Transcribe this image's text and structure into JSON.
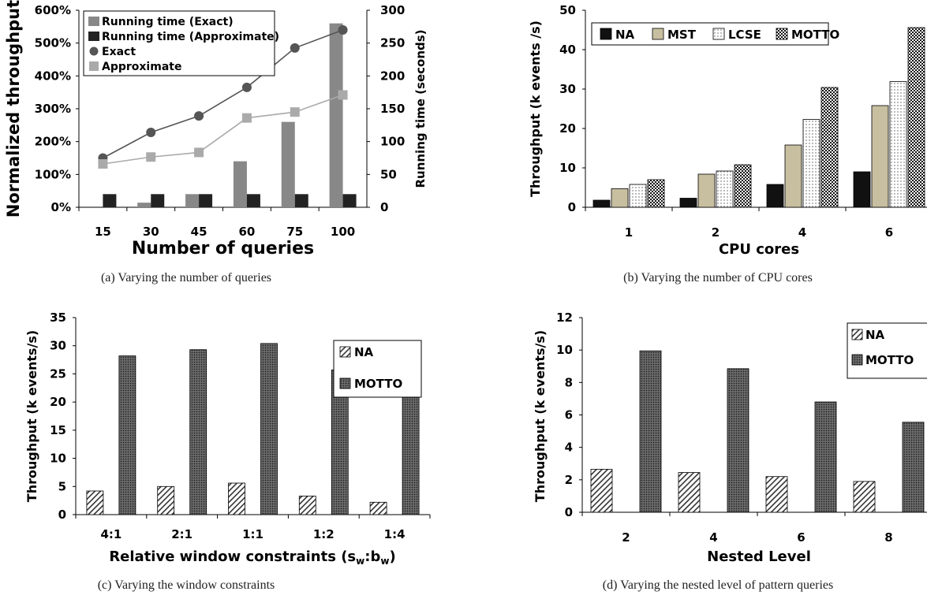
{
  "chart_data": [
    {
      "id": "a",
      "type": "bar+line",
      "caption": "(a) Varying the number of queries",
      "xlabel": "Number of queries",
      "ylabel_left": "Normalized throughput",
      "ylabel_right": "Running time (seconds)",
      "categories": [
        "15",
        "30",
        "45",
        "60",
        "75",
        "100"
      ],
      "ylim_left": [
        0,
        600
      ],
      "ylim_right": [
        0,
        300
      ],
      "yticks_left": [
        "0%",
        "100%",
        "200%",
        "300%",
        "400%",
        "500%",
        "600%"
      ],
      "yticks_right": [
        "0",
        "50",
        "100",
        "150",
        "200",
        "250",
        "300"
      ],
      "bar_series": [
        {
          "name": "Running time (Exact)",
          "color": "#888888",
          "values": [
            0,
            7,
            20,
            70,
            130,
            280
          ]
        },
        {
          "name": "Running time (Approximate)",
          "color": "#222222",
          "values": [
            20,
            20,
            20,
            20,
            20,
            20
          ]
        }
      ],
      "line_series": [
        {
          "name": "Exact",
          "color": "#555555",
          "marker": "circle",
          "values": [
            150,
            228,
            278,
            365,
            485,
            540
          ]
        },
        {
          "name": "Approximate",
          "color": "#aaaaaa",
          "marker": "square",
          "values": [
            132,
            153,
            167,
            272,
            290,
            342
          ]
        }
      ],
      "legend": "top-left"
    },
    {
      "id": "b",
      "type": "bar",
      "caption": "(b) Varying the number of CPU cores",
      "xlabel": "CPU cores",
      "ylabel": "Throughput (k events /s)",
      "categories": [
        "1",
        "2",
        "4",
        "6"
      ],
      "ylim": [
        0,
        50
      ],
      "yticks": [
        "0",
        "10",
        "20",
        "30",
        "40",
        "50"
      ],
      "series": [
        {
          "name": "NA",
          "pattern": "solid",
          "values": [
            1.8,
            2.3,
            5.8,
            9.0
          ]
        },
        {
          "name": "MST",
          "pattern": "tan",
          "values": [
            4.7,
            8.4,
            15.8,
            25.8
          ]
        },
        {
          "name": "LCSE",
          "pattern": "dots",
          "values": [
            5.8,
            9.2,
            22.3,
            31.9
          ]
        },
        {
          "name": "MOTTO",
          "pattern": "grid",
          "values": [
            7.0,
            10.8,
            30.4,
            45.6
          ]
        }
      ],
      "legend": "top"
    },
    {
      "id": "c",
      "type": "bar",
      "caption": "(c) Varying the window constraints",
      "xlabel": "Relative window constraints (s",
      "xlabel_sub1": "w",
      "xlabel_mid": ":b",
      "xlabel_sub2": "w",
      "xlabel_end": ")",
      "ylabel": "Throughput (k events/s)",
      "categories": [
        "4:1",
        "2:1",
        "1:1",
        "1:2",
        "1:4"
      ],
      "ylim": [
        0,
        35
      ],
      "yticks": [
        "0",
        "5",
        "10",
        "15",
        "20",
        "25",
        "30",
        "35"
      ],
      "series": [
        {
          "name": "NA",
          "pattern": "hatch",
          "values": [
            4.2,
            5.0,
            5.6,
            3.3,
            2.2
          ]
        },
        {
          "name": "MOTTO",
          "pattern": "dense",
          "values": [
            28.2,
            29.3,
            30.4,
            25.7,
            22.3
          ]
        }
      ],
      "legend": "top-right"
    },
    {
      "id": "d",
      "type": "bar",
      "caption": "(d) Varying the nested level of pattern queries",
      "xlabel": "Nested Level",
      "ylabel": "Throughput (k events/s)",
      "categories": [
        "2",
        "4",
        "6",
        "8"
      ],
      "ylim": [
        0,
        12
      ],
      "yticks": [
        "0",
        "2",
        "4",
        "6",
        "8",
        "10",
        "12"
      ],
      "series": [
        {
          "name": "NA",
          "pattern": "hatch",
          "values": [
            2.65,
            2.45,
            2.2,
            1.9
          ]
        },
        {
          "name": "MOTTO",
          "pattern": "dense",
          "values": [
            9.95,
            8.85,
            6.8,
            5.55
          ]
        }
      ],
      "legend": "top-right"
    }
  ]
}
